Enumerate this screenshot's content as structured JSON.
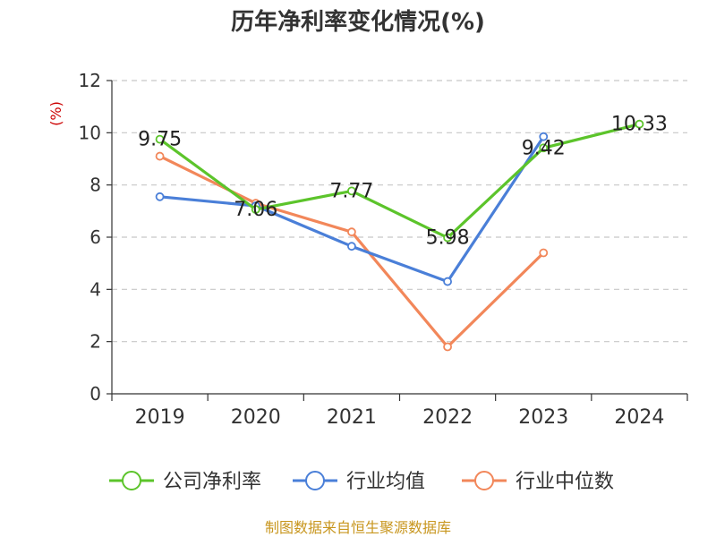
{
  "chart_data": {
    "type": "line",
    "title": "历年净利率变化情况(%)",
    "ylabel": "(%)",
    "xlabel": "",
    "categories": [
      "2019",
      "2020",
      "2021",
      "2022",
      "2023",
      "2024"
    ],
    "ylim": [
      0,
      12
    ],
    "yticks": [
      0,
      2,
      4,
      6,
      8,
      10,
      12
    ],
    "grid": true,
    "legend_position": "bottom",
    "series": [
      {
        "name": "公司净利率",
        "color": "#5cc42b",
        "values": [
          9.75,
          7.06,
          7.77,
          5.98,
          9.42,
          10.33
        ],
        "labels": [
          "9.75",
          "7.06",
          "7.77",
          "5.98",
          "9.42",
          "10.33"
        ]
      },
      {
        "name": "行业均值",
        "color": "#4a7fd8",
        "values": [
          7.55,
          7.2,
          5.65,
          4.3,
          9.85,
          null
        ]
      },
      {
        "name": "行业中位数",
        "color": "#f2875a",
        "values": [
          9.1,
          7.3,
          6.2,
          1.8,
          5.4,
          null
        ]
      }
    ]
  },
  "source": "制图数据来自恒生聚源数据库"
}
